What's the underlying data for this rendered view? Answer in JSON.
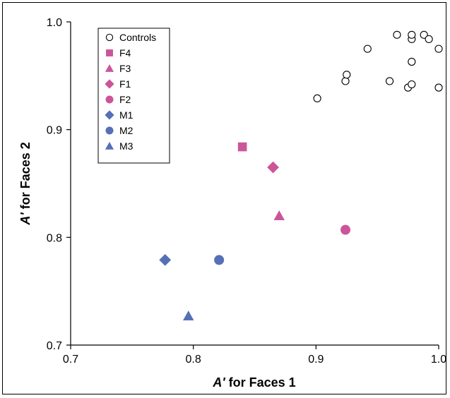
{
  "chart_data": {
    "type": "scatter",
    "xlabel_prefix": "A'",
    "xlabel_rest": " for Faces 1",
    "ylabel_prefix": "A'",
    "ylabel_rest": " for Faces 2",
    "xlim": [
      0.7,
      1.0
    ],
    "ylim": [
      0.7,
      1.0
    ],
    "xticks": [
      "0.7",
      "0.8",
      "0.9",
      "1.0"
    ],
    "yticks": [
      "0.7",
      "0.8",
      "0.9",
      "1.0"
    ],
    "grid": false,
    "legend_position": "top-left",
    "series": [
      {
        "name": "Controls",
        "marker": "open-circle",
        "color": "#000000",
        "points": [
          [
            0.901,
            0.929
          ],
          [
            0.924,
            0.945
          ],
          [
            0.925,
            0.951
          ],
          [
            0.942,
            0.975
          ],
          [
            0.96,
            0.945
          ],
          [
            0.966,
            0.988
          ],
          [
            0.975,
            0.939
          ],
          [
            0.978,
            0.942
          ],
          [
            0.978,
            0.963
          ],
          [
            0.978,
            0.984
          ],
          [
            0.978,
            0.988
          ],
          [
            0.988,
            0.988
          ],
          [
            0.992,
            0.984
          ],
          [
            1.0,
            0.975
          ],
          [
            1.0,
            0.939
          ]
        ]
      },
      {
        "name": "F4",
        "marker": "square",
        "color": "#cc5599",
        "points": [
          [
            0.84,
            0.884
          ]
        ]
      },
      {
        "name": "F3",
        "marker": "triangle",
        "color": "#cc5599",
        "points": [
          [
            0.87,
            0.82
          ]
        ]
      },
      {
        "name": "F1",
        "marker": "diamond",
        "color": "#cc5599",
        "points": [
          [
            0.865,
            0.865
          ]
        ]
      },
      {
        "name": "F2",
        "marker": "circle",
        "color": "#cc5599",
        "points": [
          [
            0.924,
            0.807
          ]
        ]
      },
      {
        "name": "M1",
        "marker": "diamond",
        "color": "#5570b5",
        "points": [
          [
            0.777,
            0.779
          ]
        ]
      },
      {
        "name": "M2",
        "marker": "circle",
        "color": "#5570b5",
        "points": [
          [
            0.821,
            0.779
          ]
        ]
      },
      {
        "name": "M3",
        "marker": "triangle",
        "color": "#5570b5",
        "points": [
          [
            0.796,
            0.727
          ]
        ]
      }
    ]
  }
}
